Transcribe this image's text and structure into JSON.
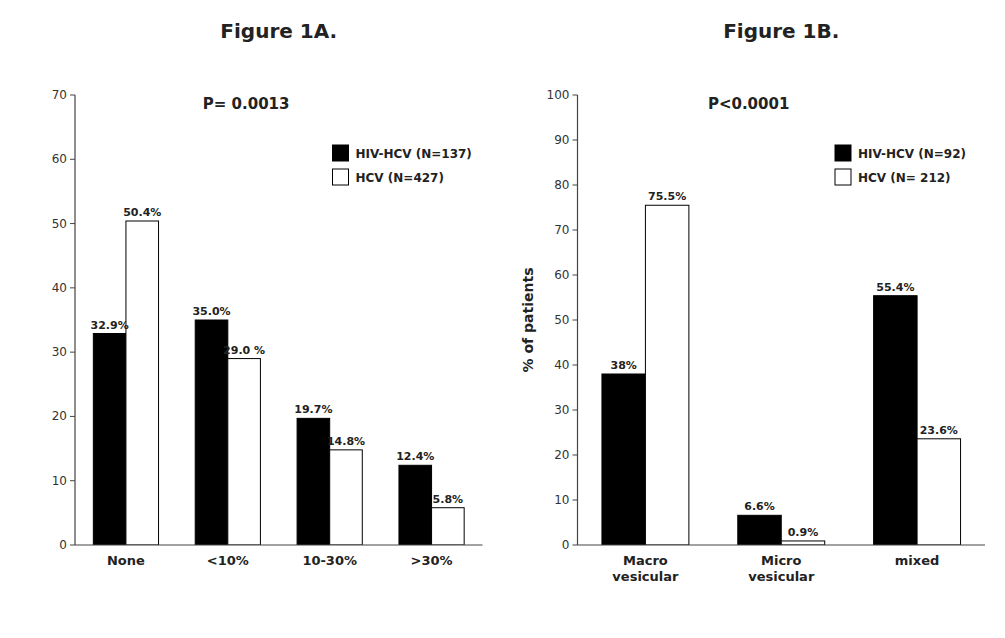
{
  "chart_data": [
    {
      "type": "bar",
      "title": "Figure 1A.",
      "categories": [
        "None",
        "<10%",
        "10-30%",
        ">30%"
      ],
      "series": [
        {
          "name": "HIV-HCV (N=137)",
          "color": "#000000",
          "values": [
            32.9,
            35.0,
            19.7,
            12.4
          ],
          "value_labels": [
            "32.9%",
            "35.0%",
            "19.7%",
            "12.4%"
          ]
        },
        {
          "name": "HCV (N=427)",
          "color": "#ffffff",
          "values": [
            50.4,
            29.0,
            14.8,
            5.8
          ],
          "value_labels": [
            "50.4%",
            "29.0 %",
            "14.8%",
            "5.8%"
          ]
        }
      ],
      "ylim": [
        0,
        70
      ],
      "yticks": [
        0,
        10,
        20,
        30,
        40,
        50,
        60,
        70
      ],
      "annotations": [
        "P= 0.0013"
      ],
      "legend": "upper right",
      "data_labels": true,
      "grid": false
    },
    {
      "type": "bar",
      "title": "Figure 1B.",
      "categories": [
        "Macro\nvesicular",
        "Micro\nvesicular",
        "mixed"
      ],
      "series": [
        {
          "name": "HIV-HCV (N=92)",
          "color": "#000000",
          "values": [
            38.0,
            6.6,
            55.4
          ],
          "value_labels": [
            "38%",
            "6.6%",
            "55.4%"
          ]
        },
        {
          "name": "HCV (N= 212)",
          "color": "#ffffff",
          "values": [
            75.5,
            0.9,
            23.6
          ],
          "value_labels": [
            "75.5%",
            "0.9%",
            "23.6%"
          ]
        }
      ],
      "ylim": [
        0,
        100
      ],
      "yticks": [
        0,
        10,
        20,
        30,
        40,
        50,
        60,
        70,
        80,
        90,
        100
      ],
      "y_label": "% of patients",
      "annotations": [
        "P<0.0001"
      ],
      "legend": "upper right",
      "data_labels": true,
      "grid": false
    }
  ]
}
